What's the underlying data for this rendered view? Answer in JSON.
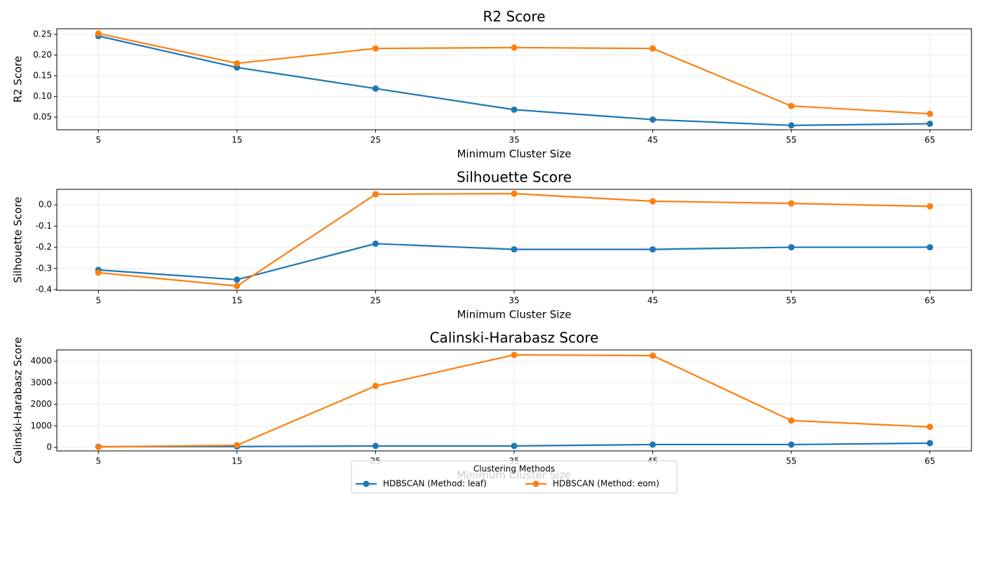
{
  "chart_data": [
    {
      "type": "line",
      "title": "R2 Score",
      "xlabel": "Minimum Cluster Size",
      "ylabel": "R2 Score",
      "x": [
        5,
        15,
        25,
        35,
        45,
        55,
        65
      ],
      "series": [
        {
          "name": "HDBSCAN (Method: leaf)",
          "color": "#1f77b4",
          "values": [
            0.246,
            0.17,
            0.119,
            0.068,
            0.044,
            0.03,
            0.034
          ]
        },
        {
          "name": "HDBSCAN (Method: eom)",
          "color": "#ff7f0e",
          "values": [
            0.252,
            0.18,
            0.216,
            0.218,
            0.216,
            0.077,
            0.058
          ]
        }
      ],
      "xlim": [
        2,
        68
      ],
      "xticks": [
        5,
        15,
        25,
        35,
        45,
        55,
        65
      ],
      "ylim": [
        0.0195,
        0.2636
      ],
      "yticks": [
        0.05,
        {
          "value": 0.1,
          "label": "0.10"
        },
        0.15,
        {
          "value": 0.2,
          "label": "0.20"
        },
        0.25
      ],
      "grid": true
    },
    {
      "type": "line",
      "title": "Silhouette Score",
      "xlabel": "Minimum Cluster Size",
      "ylabel": "Silhouette Score",
      "x": [
        5,
        15,
        25,
        35,
        45,
        55,
        65
      ],
      "series": [
        {
          "name": "HDBSCAN (Method: leaf)",
          "color": "#1f77b4",
          "values": [
            -0.307,
            -0.353,
            -0.183,
            -0.21,
            -0.21,
            -0.2,
            -0.2
          ]
        },
        {
          "name": "HDBSCAN (Method: eom)",
          "color": "#ff7f0e",
          "values": [
            -0.32,
            -0.383,
            0.05,
            0.053,
            0.017,
            0.007,
            -0.007
          ]
        }
      ],
      "xlim": [
        2,
        68
      ],
      "xticks": [
        5,
        15,
        25,
        35,
        45,
        55,
        65
      ],
      "ylim": [
        -0.4033,
        0.0733
      ],
      "yticks": [
        -0.4,
        -0.3,
        -0.2,
        -0.1,
        {
          "value": 0,
          "label": "0.0"
        }
      ],
      "grid": true
    },
    {
      "type": "line",
      "title": "Calinski-Harabasz Score",
      "xlabel": "Minimum Cluster Size",
      "ylabel": "Calinski-Harabasz Score",
      "x": [
        5,
        15,
        25,
        35,
        45,
        55,
        65
      ],
      "series": [
        {
          "name": "HDBSCAN (Method: leaf)",
          "color": "#1f77b4",
          "values": [
            33,
            40,
            66,
            66,
            131,
            131,
            197
          ]
        },
        {
          "name": "HDBSCAN (Method: eom)",
          "color": "#ff7f0e",
          "values": [
            20,
            98,
            2852,
            4295,
            4262,
            1246,
            951
          ]
        }
      ],
      "xlim": [
        2,
        68
      ],
      "xticks": [
        5,
        15,
        25,
        35,
        45,
        55,
        65
      ],
      "ylim": [
        -164,
        4525
      ],
      "yticks": [
        0,
        1000,
        2000,
        3000,
        4000
      ],
      "grid": true,
      "legend_title": "Clustering Methods",
      "legend": "lower center"
    }
  ]
}
